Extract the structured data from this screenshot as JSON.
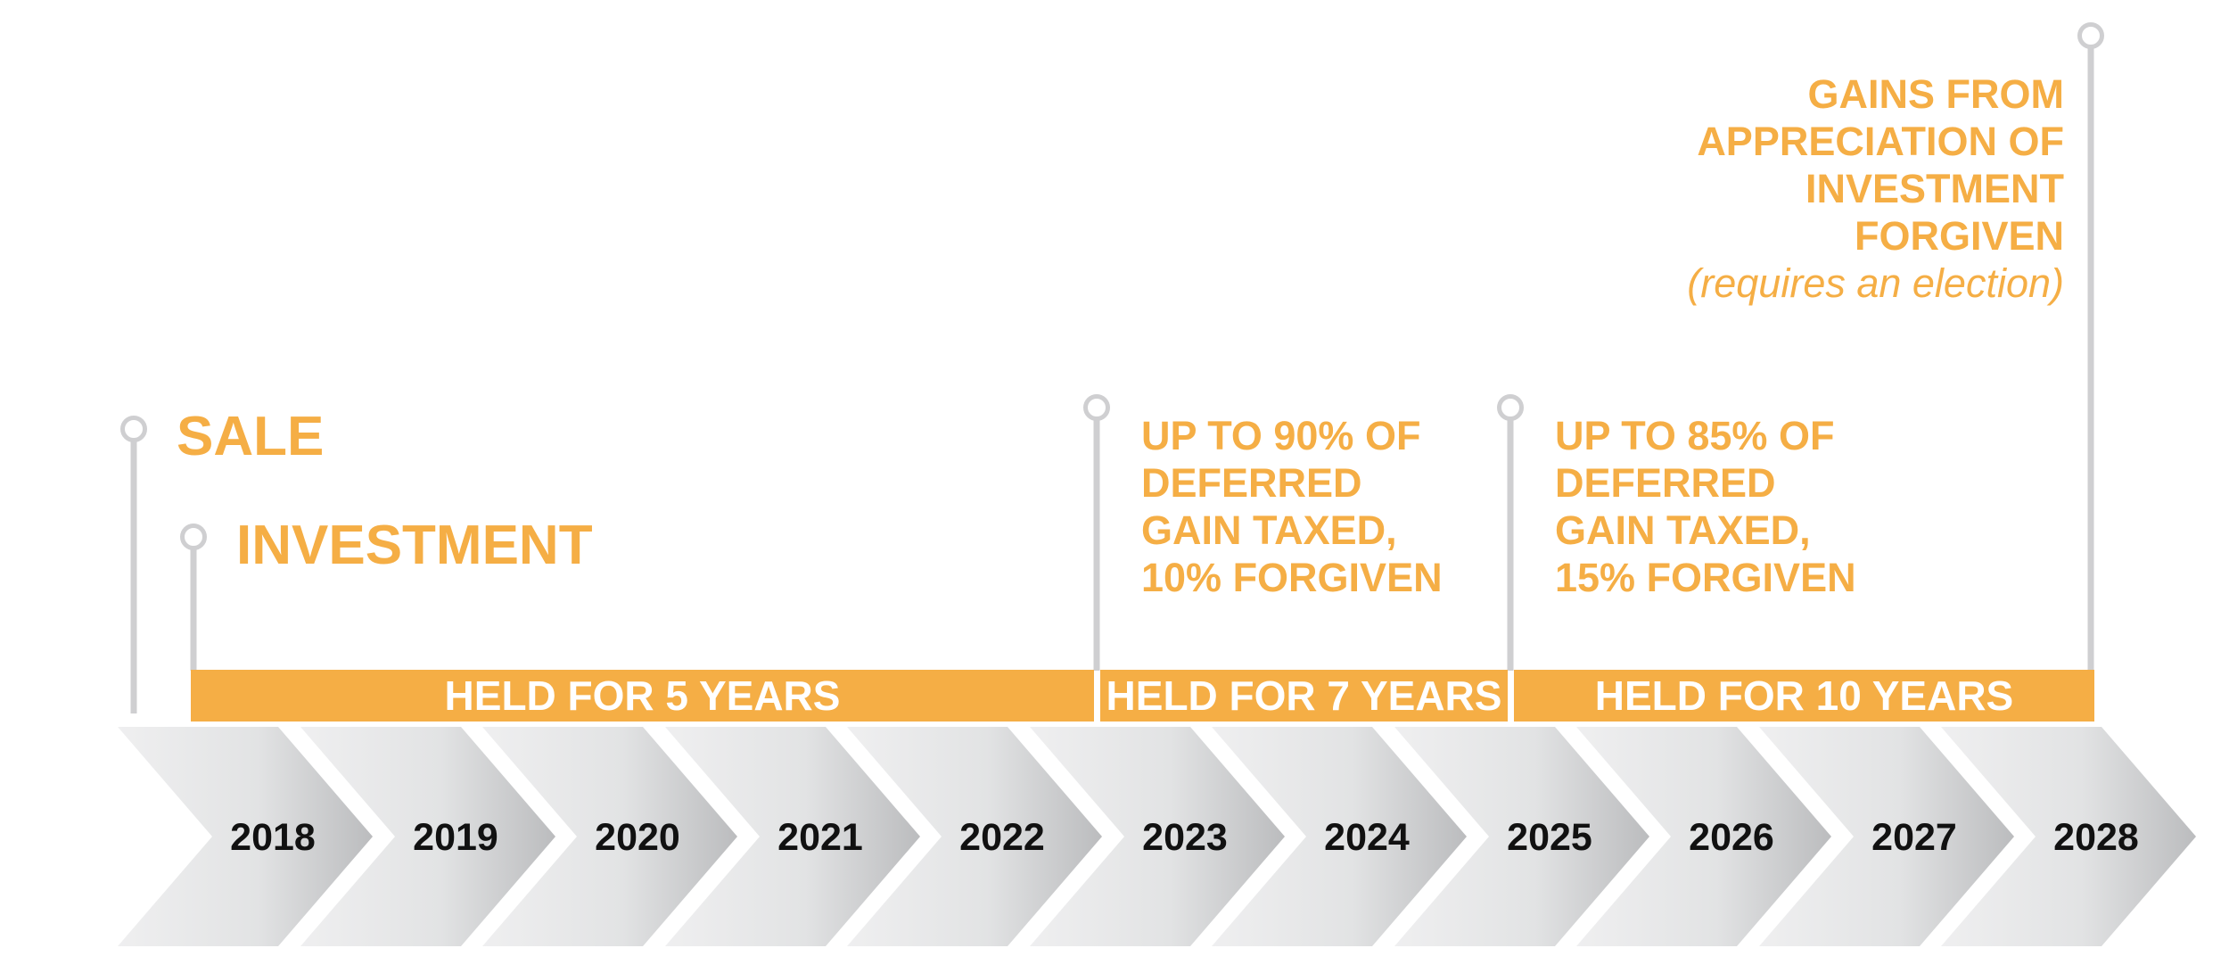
{
  "colors": {
    "accent": "#F5AE45",
    "chevron_light": "#EDEDEE",
    "chevron_dark": "#BDBEC0",
    "marker_line": "#CFCFD1",
    "year_text": "#111111"
  },
  "events": {
    "sale": "SALE",
    "investment": "INVESTMENT",
    "seven_year": [
      "UP TO 90% OF",
      "DEFERRED",
      "GAIN TAXED,",
      "10% FORGIVEN"
    ],
    "ten_year": [
      "UP TO 85% OF",
      "DEFERRED",
      "GAIN TAXED,",
      "15% FORGIVEN"
    ],
    "final": [
      "GAINS FROM",
      "APPRECIATION OF",
      "INVESTMENT",
      "FORGIVEN"
    ],
    "final_note": "(requires an election)"
  },
  "holding_bars": [
    {
      "label": "HELD FOR 5 YEARS"
    },
    {
      "label": "HELD FOR 7 YEARS"
    },
    {
      "label": "HELD FOR 10 YEARS"
    }
  ],
  "years": [
    "2018",
    "2019",
    "2020",
    "2021",
    "2022",
    "2023",
    "2024",
    "2025",
    "2026",
    "2027",
    "2028"
  ]
}
